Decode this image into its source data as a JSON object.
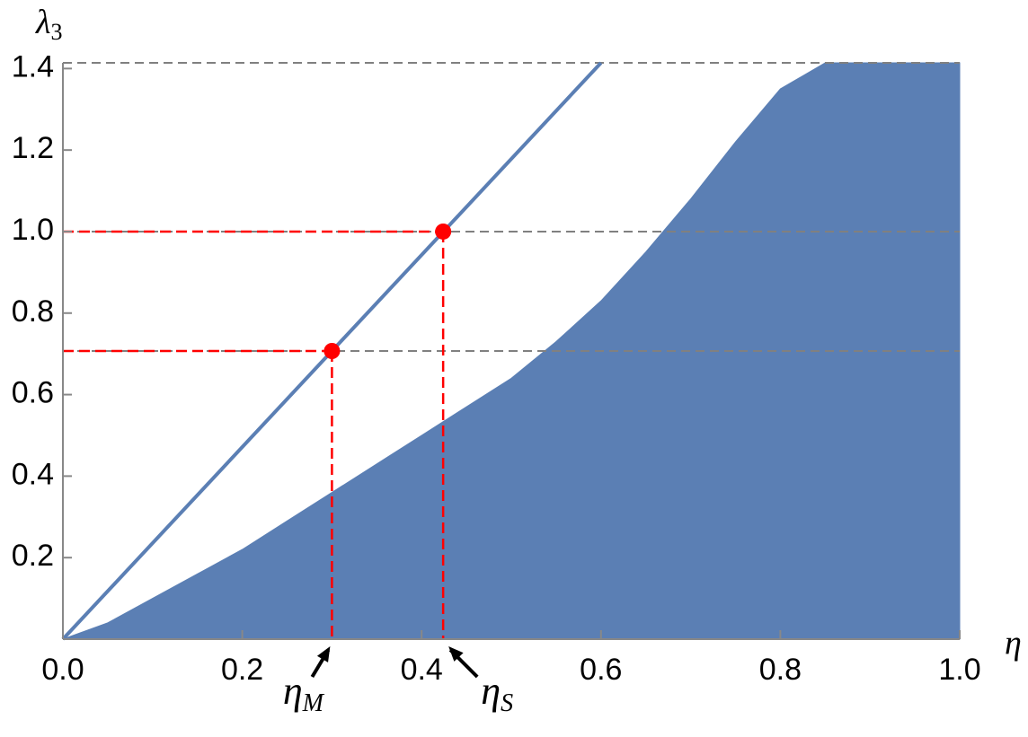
{
  "chart_data": {
    "type": "scatter",
    "x_label": "η",
    "y_label": {
      "text": "λ",
      "sub": "3"
    },
    "xlim": [
      0,
      1
    ],
    "ylim": [
      0,
      1.414
    ],
    "xticks": [
      {
        "value": 0,
        "label": "0.0"
      },
      0.2,
      0.4,
      0.6,
      0.8,
      {
        "value": 1,
        "label": "1.0"
      }
    ],
    "yticks": [
      0.2,
      0.4,
      0.6,
      0.8,
      {
        "value": 1,
        "label": "1.0"
      },
      1.2,
      1.4
    ],
    "reference_lines": {
      "color": "#808080",
      "values": [
        0.707,
        1,
        1.414
      ]
    },
    "series": [
      {
        "type": "area",
        "color": "#5b7fb4",
        "x": [
          0,
          0.05,
          0.1,
          0.15,
          0.2,
          0.25,
          0.3,
          0.35,
          0.4,
          0.45,
          0.5,
          0.55,
          0.6,
          0.65,
          0.7,
          0.75,
          0.8,
          0.85,
          0.9,
          0.95,
          1
        ],
        "values": [
          0,
          0.04,
          0.1,
          0.16,
          0.22,
          0.29,
          0.36,
          0.43,
          0.5,
          0.57,
          0.64,
          0.73,
          0.83,
          0.95,
          1.08,
          1.22,
          1.35,
          1.414,
          1.414,
          1.414,
          1.414
        ]
      },
      {
        "type": "line",
        "color": "#5b7fb4",
        "x": [
          0,
          0.6
        ],
        "values": [
          0,
          1.414
        ]
      },
      {
        "type": "points",
        "color": "#ff0000",
        "x": [
          0.3,
          0.424
        ],
        "values": [
          0.707,
          1
        ]
      }
    ],
    "annotations": [
      {
        "label": "η",
        "sub": "M",
        "x": 0.3
      },
      {
        "label": "η",
        "sub": "S",
        "x": 0.424
      }
    ]
  }
}
